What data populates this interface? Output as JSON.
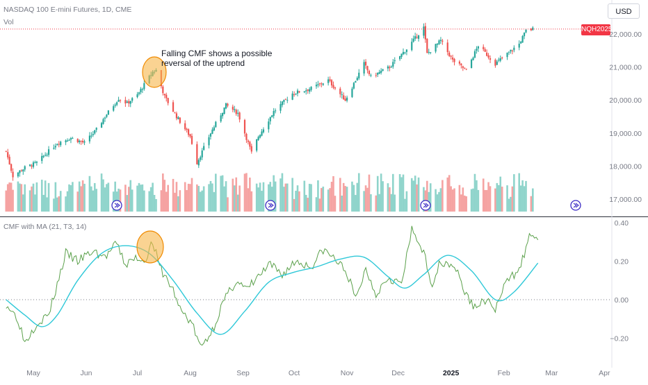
{
  "header": {
    "symbol_title": "NASDAQ 100 E-mini Futures, 1D, CME",
    "volume_label": "Vol",
    "currency_button": "USD",
    "last_price_badge": "NQH2025"
  },
  "annotation": {
    "line1": "Falling CMF shows a possible",
    "line2": "reversal of the uptrend"
  },
  "colors": {
    "up": "#26a69a",
    "down": "#ef5350",
    "vol_up": "#8fd4cb",
    "vol_down": "#f5a3a2",
    "cmf_line": "#5aa04a",
    "cmf_ma": "#2ec8d8",
    "highlight_fill": "#f7b54a",
    "highlight_stroke": "#f08a00",
    "last_price_line": "#f23645",
    "event_marker": "#3b2bc4"
  },
  "chart_data": [
    {
      "type": "candlestick",
      "title": "NASDAQ 100 E-mini Futures, 1D, CME",
      "y_ticks": [
        "17,000.00",
        "18,000.00",
        "19,000.00",
        "20,000.00",
        "21,000.00",
        "22,000.00"
      ],
      "ylim": [
        16700,
        22700
      ],
      "x_labels": [
        "May",
        "Jun",
        "Jul",
        "Aug",
        "Sep",
        "Oct",
        "Nov",
        "Dec",
        "2025",
        "Feb",
        "Mar",
        "Apr"
      ],
      "anchors": [
        {
          "date": "2024-04-15",
          "close": 18450
        },
        {
          "date": "2024-04-19",
          "close": 17700
        },
        {
          "date": "2024-04-26",
          "close": 17950
        },
        {
          "date": "2024-05-03",
          "close": 18100
        },
        {
          "date": "2024-05-15",
          "close": 18700
        },
        {
          "date": "2024-05-23",
          "close": 18850
        },
        {
          "date": "2024-05-31",
          "close": 18700
        },
        {
          "date": "2024-06-07",
          "close": 19100
        },
        {
          "date": "2024-06-12",
          "close": 19500
        },
        {
          "date": "2024-06-20",
          "close": 20050
        },
        {
          "date": "2024-06-25",
          "close": 19900
        },
        {
          "date": "2024-07-01",
          "close": 20150
        },
        {
          "date": "2024-07-10",
          "close": 20850
        },
        {
          "date": "2024-07-12",
          "close": 20900
        },
        {
          "date": "2024-07-17",
          "close": 20100
        },
        {
          "date": "2024-07-24",
          "close": 19500
        },
        {
          "date": "2024-08-01",
          "close": 18900
        },
        {
          "date": "2024-08-05",
          "close": 18100
        },
        {
          "date": "2024-08-13",
          "close": 19000
        },
        {
          "date": "2024-08-22",
          "close": 19850
        },
        {
          "date": "2024-08-29",
          "close": 19600
        },
        {
          "date": "2024-09-06",
          "close": 18400
        },
        {
          "date": "2024-09-10",
          "close": 18900
        },
        {
          "date": "2024-09-19",
          "close": 19650
        },
        {
          "date": "2024-09-30",
          "close": 20200
        },
        {
          "date": "2024-10-11",
          "close": 20350
        },
        {
          "date": "2024-10-21",
          "close": 20600
        },
        {
          "date": "2024-10-31",
          "close": 20000
        },
        {
          "date": "2024-11-11",
          "close": 21100
        },
        {
          "date": "2024-11-15",
          "close": 20700
        },
        {
          "date": "2024-11-26",
          "close": 21000
        },
        {
          "date": "2024-12-06",
          "close": 21550
        },
        {
          "date": "2024-12-16",
          "close": 22200
        },
        {
          "date": "2024-12-18",
          "close": 21400
        },
        {
          "date": "2024-12-26",
          "close": 21800
        },
        {
          "date": "2025-01-02",
          "close": 21200
        },
        {
          "date": "2025-01-10",
          "close": 20900
        },
        {
          "date": "2025-01-17",
          "close": 21650
        },
        {
          "date": "2025-01-27",
          "close": 21100
        },
        {
          "date": "2025-02-03",
          "close": 21400
        },
        {
          "date": "2025-02-10",
          "close": 21700
        },
        {
          "date": "2025-02-14",
          "close": 22100
        },
        {
          "date": "2025-02-18",
          "close": 22150
        }
      ],
      "last_price_label": "NQH2025"
    },
    {
      "type": "bar",
      "title": "Vol",
      "note": "daily volume bars, colored by candle direction"
    },
    {
      "type": "line",
      "title": "CMF with MA (21, T3, 14)",
      "y_ticks": [
        "−0.20",
        "0.00",
        "0.20",
        "0.40"
      ],
      "ylim": [
        -0.29,
        0.41
      ],
      "series": [
        {
          "name": "CMF",
          "points": [
            {
              "date": "2024-04-15",
              "value": -0.02
            },
            {
              "date": "2024-04-22",
              "value": -0.1
            },
            {
              "date": "2024-04-26",
              "value": -0.22
            },
            {
              "date": "2024-05-03",
              "value": -0.12
            },
            {
              "date": "2024-05-10",
              "value": -0.08
            },
            {
              "date": "2024-05-15",
              "value": 0.08
            },
            {
              "date": "2024-05-20",
              "value": 0.24
            },
            {
              "date": "2024-05-27",
              "value": 0.2
            },
            {
              "date": "2024-06-05",
              "value": 0.25
            },
            {
              "date": "2024-06-12",
              "value": 0.22
            },
            {
              "date": "2024-06-19",
              "value": 0.29
            },
            {
              "date": "2024-06-24",
              "value": 0.18
            },
            {
              "date": "2024-07-01",
              "value": 0.22
            },
            {
              "date": "2024-07-05",
              "value": 0.2
            },
            {
              "date": "2024-07-10",
              "value": 0.3
            },
            {
              "date": "2024-07-14",
              "value": 0.17
            },
            {
              "date": "2024-07-22",
              "value": 0.05
            },
            {
              "date": "2024-07-26",
              "value": -0.05
            },
            {
              "date": "2024-08-02",
              "value": -0.12
            },
            {
              "date": "2024-08-07",
              "value": -0.25
            },
            {
              "date": "2024-08-14",
              "value": -0.16
            },
            {
              "date": "2024-08-20",
              "value": -0.02
            },
            {
              "date": "2024-08-28",
              "value": 0.1
            },
            {
              "date": "2024-09-03",
              "value": 0.05
            },
            {
              "date": "2024-09-10",
              "value": 0.12
            },
            {
              "date": "2024-09-17",
              "value": 0.18
            },
            {
              "date": "2024-09-24",
              "value": 0.13
            },
            {
              "date": "2024-10-02",
              "value": 0.2
            },
            {
              "date": "2024-10-11",
              "value": 0.17
            },
            {
              "date": "2024-10-18",
              "value": 0.26
            },
            {
              "date": "2024-10-25",
              "value": 0.21
            },
            {
              "date": "2024-11-01",
              "value": 0.14
            },
            {
              "date": "2024-11-06",
              "value": 0.0
            },
            {
              "date": "2024-11-12",
              "value": 0.16
            },
            {
              "date": "2024-11-18",
              "value": 0.03
            },
            {
              "date": "2024-11-25",
              "value": 0.12
            },
            {
              "date": "2024-12-03",
              "value": 0.08
            },
            {
              "date": "2024-12-09",
              "value": 0.36
            },
            {
              "date": "2024-12-16",
              "value": 0.25
            },
            {
              "date": "2024-12-20",
              "value": 0.07
            },
            {
              "date": "2024-12-26",
              "value": 0.2
            },
            {
              "date": "2025-01-03",
              "value": 0.18
            },
            {
              "date": "2025-01-10",
              "value": 0.02
            },
            {
              "date": "2025-01-15",
              "value": -0.04
            },
            {
              "date": "2025-01-21",
              "value": 0.0
            },
            {
              "date": "2025-01-27",
              "value": -0.05
            },
            {
              "date": "2025-02-03",
              "value": 0.1
            },
            {
              "date": "2025-02-07",
              "value": 0.13
            },
            {
              "date": "2025-02-12",
              "value": 0.21
            },
            {
              "date": "2025-02-14",
              "value": 0.26
            },
            {
              "date": "2025-02-17",
              "value": 0.35
            },
            {
              "date": "2025-02-21",
              "value": 0.31
            }
          ]
        },
        {
          "name": "MA",
          "points": [
            {
              "date": "2024-04-15",
              "value": 0.0
            },
            {
              "date": "2024-04-26",
              "value": -0.08
            },
            {
              "date": "2024-05-06",
              "value": -0.14
            },
            {
              "date": "2024-05-15",
              "value": -0.08
            },
            {
              "date": "2024-05-27",
              "value": 0.1
            },
            {
              "date": "2024-06-10",
              "value": 0.24
            },
            {
              "date": "2024-06-24",
              "value": 0.28
            },
            {
              "date": "2024-07-08",
              "value": 0.24
            },
            {
              "date": "2024-07-22",
              "value": 0.1
            },
            {
              "date": "2024-08-05",
              "value": -0.07
            },
            {
              "date": "2024-08-19",
              "value": -0.18
            },
            {
              "date": "2024-09-02",
              "value": -0.06
            },
            {
              "date": "2024-09-16",
              "value": 0.09
            },
            {
              "date": "2024-09-30",
              "value": 0.14
            },
            {
              "date": "2024-10-14",
              "value": 0.17
            },
            {
              "date": "2024-10-28",
              "value": 0.21
            },
            {
              "date": "2024-11-11",
              "value": 0.22
            },
            {
              "date": "2024-11-25",
              "value": 0.12
            },
            {
              "date": "2024-12-05",
              "value": 0.06
            },
            {
              "date": "2024-12-16",
              "value": 0.13
            },
            {
              "date": "2024-12-30",
              "value": 0.23
            },
            {
              "date": "2025-01-13",
              "value": 0.15
            },
            {
              "date": "2025-01-27",
              "value": 0.0
            },
            {
              "date": "2025-02-07",
              "value": 0.04
            },
            {
              "date": "2025-02-21",
              "value": 0.19
            }
          ]
        }
      ]
    }
  ]
}
